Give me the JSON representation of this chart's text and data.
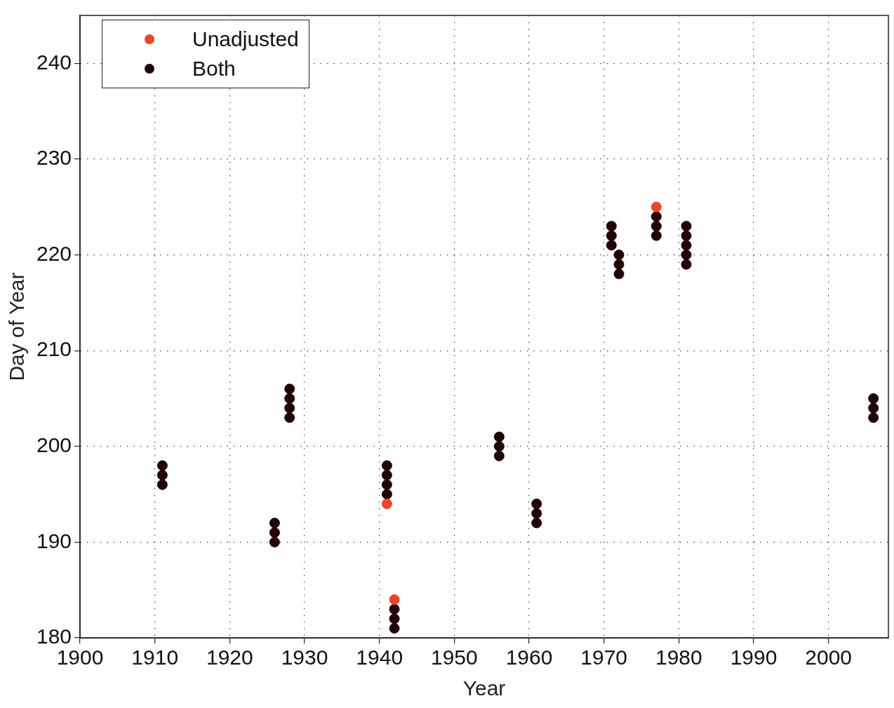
{
  "chart_data": {
    "type": "scatter",
    "xlabel": "Year",
    "ylabel": "Day of Year",
    "xlim": [
      1900,
      2008
    ],
    "xticks": [
      1900,
      1910,
      1920,
      1930,
      1940,
      1950,
      1960,
      1970,
      1980,
      1990,
      2000
    ],
    "ylim": [
      180,
      245
    ],
    "yticks": [
      180,
      190,
      200,
      210,
      220,
      230,
      240
    ],
    "grid": true,
    "legend": "top left",
    "marker": "circle",
    "series": [
      {
        "name": "Unadjusted",
        "color": "#f04424",
        "x": [
          1941,
          1942,
          1977
        ],
        "values": [
          194,
          184,
          225
        ]
      },
      {
        "name": "Both",
        "color": "#220406",
        "x": [
          1911,
          1911,
          1911,
          1926,
          1926,
          1926,
          1928,
          1928,
          1928,
          1928,
          1941,
          1941,
          1941,
          1941,
          1942,
          1942,
          1942,
          1956,
          1956,
          1956,
          1961,
          1961,
          1961,
          1971,
          1971,
          1971,
          1972,
          1972,
          1972,
          1977,
          1977,
          1977,
          1981,
          1981,
          1981,
          1981,
          1981,
          2006,
          2006,
          2006
        ],
        "values": [
          196,
          197,
          198,
          190,
          191,
          192,
          203,
          204,
          205,
          206,
          195,
          196,
          197,
          198,
          181,
          182,
          183,
          199,
          200,
          201,
          192,
          193,
          194,
          221,
          222,
          223,
          218,
          219,
          220,
          222,
          223,
          224,
          219,
          220,
          221,
          222,
          223,
          203,
          204,
          205
        ]
      }
    ]
  }
}
